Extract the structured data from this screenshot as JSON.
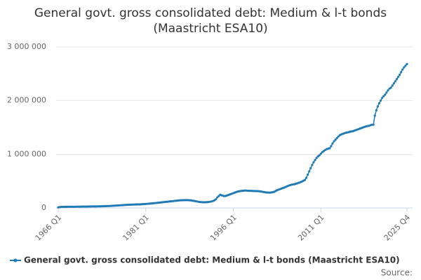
{
  "chart_data": {
    "type": "line",
    "title": "General govt. gross consolidated debt: Medium & l-t bonds (Maastricht ESA10)",
    "source": "Source:",
    "categories": [
      "1966 Q1",
      null,
      null,
      null,
      null,
      null,
      null,
      null,
      null,
      null,
      null,
      null,
      null,
      null,
      null,
      null,
      null,
      null,
      null,
      null,
      null,
      null,
      null,
      null,
      null,
      null,
      null,
      null,
      null,
      null,
      null,
      null,
      null,
      null,
      null,
      null,
      null,
      null,
      null,
      null,
      null,
      null,
      null,
      null,
      null,
      null,
      null,
      null,
      null,
      null,
      null,
      null,
      null,
      null,
      null,
      null,
      null,
      null,
      null,
      null,
      "1981 Q1",
      null,
      null,
      null,
      null,
      null,
      null,
      null,
      null,
      null,
      null,
      null,
      null,
      null,
      null,
      null,
      null,
      null,
      null,
      null,
      null,
      null,
      null,
      null,
      null,
      null,
      null,
      null,
      null,
      null,
      null,
      null,
      null,
      null,
      null,
      null,
      null,
      null,
      null,
      null,
      null,
      null,
      null,
      null,
      null,
      null,
      null,
      null,
      null,
      null,
      null,
      null,
      null,
      null,
      null,
      null,
      null,
      null,
      null,
      null,
      "1996 Q1",
      null,
      null,
      null,
      null,
      null,
      null,
      null,
      null,
      null,
      null,
      null,
      null,
      null,
      null,
      null,
      null,
      null,
      null,
      null,
      null,
      null,
      null,
      null,
      null,
      null,
      null,
      null,
      null,
      null,
      null,
      null,
      null,
      null,
      null,
      null,
      null,
      null,
      null,
      null,
      null,
      null,
      null,
      null,
      null,
      null,
      null,
      null,
      null,
      null,
      null,
      null,
      null,
      null,
      null,
      null,
      null,
      null,
      null,
      null,
      "2011 Q1",
      null,
      null,
      null,
      null,
      null,
      null,
      null,
      null,
      null,
      null,
      null,
      null,
      null,
      null,
      null,
      null,
      null,
      null,
      null,
      null,
      null,
      null,
      null,
      null,
      null,
      null,
      null,
      null,
      null,
      null,
      null,
      null,
      null,
      null,
      null,
      null,
      null,
      null,
      null,
      null,
      null,
      null,
      null,
      null,
      null,
      null,
      null,
      null,
      null,
      null,
      null,
      null,
      null,
      null,
      null,
      null,
      null,
      null,
      "2025 Q4"
    ],
    "series": [
      {
        "name": "General govt. gross consolidated debt: Medium & l-t bonds (Maastricht ESA10)",
        "color": "#1f7bb6",
        "values": [
          10000,
          15000,
          18000,
          20000,
          20000,
          20000,
          21000,
          21000,
          21000,
          22000,
          22000,
          22000,
          22000,
          23000,
          23000,
          23000,
          24000,
          24000,
          25000,
          25000,
          25000,
          26000,
          26000,
          27000,
          27000,
          28000,
          28000,
          29000,
          29000,
          30000,
          31000,
          32000,
          33000,
          34000,
          35000,
          36000,
          37000,
          39000,
          41000,
          43000,
          44000,
          46000,
          48000,
          50000,
          51000,
          53000,
          55000,
          57000,
          58000,
          60000,
          61000,
          62000,
          63000,
          64000,
          65000,
          66000,
          65000,
          68000,
          70000,
          72000,
          74000,
          76000,
          78000,
          80000,
          83000,
          86000,
          89000,
          92000,
          95000,
          98000,
          101000,
          104000,
          107000,
          110000,
          113000,
          116000,
          119000,
          122000,
          125000,
          128000,
          131000,
          134000,
          137000,
          140000,
          142000,
          143000,
          144000,
          145000,
          145000,
          144000,
          142000,
          140000,
          135000,
          130000,
          125000,
          120000,
          115000,
          110000,
          108000,
          106000,
          105000,
          106000,
          108000,
          110000,
          115000,
          120000,
          128000,
          140000,
          160000,
          195000,
          220000,
          245000,
          235000,
          225000,
          220000,
          225000,
          235000,
          245000,
          255000,
          265000,
          275000,
          285000,
          295000,
          305000,
          310000,
          315000,
          318000,
          320000,
          325000,
          322000,
          320000,
          318000,
          318000,
          316000,
          315000,
          314000,
          313000,
          312000,
          310000,
          305000,
          300000,
          295000,
          290000,
          287000,
          285000,
          285000,
          287000,
          292000,
          300000,
          315000,
          330000,
          340000,
          350000,
          360000,
          370000,
          380000,
          392000,
          405000,
          415000,
          425000,
          432000,
          438000,
          442000,
          450000,
          460000,
          470000,
          480000,
          490000,
          505000,
          520000,
          560000,
          620000,
          680000,
          740000,
          800000,
          850000,
          890000,
          930000,
          960000,
          980000,
          1010000,
          1040000,
          1060000,
          1080000,
          1095000,
          1105000,
          1110000,
          1150000,
          1200000,
          1240000,
          1270000,
          1300000,
          1330000,
          1355000,
          1370000,
          1380000,
          1390000,
          1400000,
          1405000,
          1410000,
          1420000,
          1425000,
          1430000,
          1440000,
          1450000,
          1460000,
          1470000,
          1480000,
          1490000,
          1500000,
          1510000,
          1520000,
          1525000,
          1530000,
          1540000,
          1550000,
          1550000,
          1720000,
          1820000,
          1890000,
          1950000,
          2000000,
          2050000,
          2080000,
          2110000,
          2150000,
          2190000,
          2220000,
          2240000,
          2280000,
          2320000,
          2360000,
          2400000,
          2440000,
          2480000,
          2530000,
          2580000,
          2620000,
          2650000,
          2680000
        ]
      }
    ],
    "ylim": [
      0,
      3000000
    ],
    "yticks": [
      0,
      {
        "value": 1000000,
        "label": "1 000 000"
      },
      {
        "value": 2000000,
        "label": "2 000 000"
      },
      {
        "value": 3000000,
        "label": "3 000 000"
      }
    ],
    "grid": true,
    "legend": "bottom"
  }
}
